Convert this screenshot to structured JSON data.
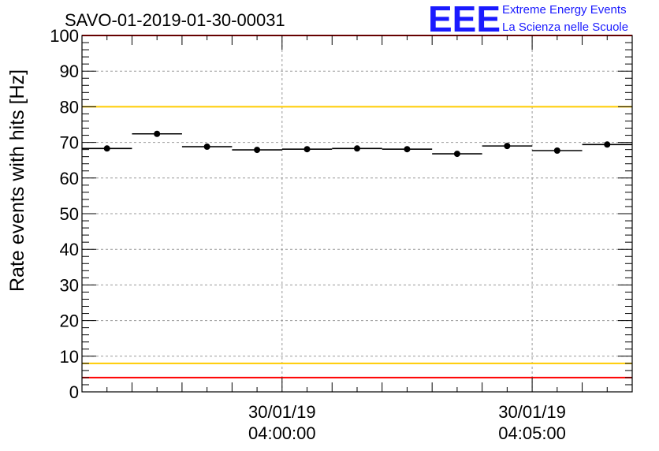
{
  "chart_data": {
    "type": "scatter",
    "title": "SAVO-01-2019-01-30-00031",
    "ylabel": "Rate events with hits [Hz]",
    "xlabel": "",
    "ylim": [
      0,
      100
    ],
    "yticks": [
      0,
      10,
      20,
      30,
      40,
      50,
      60,
      70,
      80,
      90,
      100
    ],
    "x_range_minutes": [
      -4.0,
      7.0
    ],
    "x_tick_labels": [
      {
        "minute": 0,
        "date": "30/01/19",
        "time": "04:00:00"
      },
      {
        "minute": 5,
        "date": "30/01/19",
        "time": "04:05:00"
      }
    ],
    "grid": true,
    "series": [
      {
        "name": "rate",
        "bin_width_minutes": 1.0,
        "points": [
          {
            "x": -3.5,
            "y": 68.3
          },
          {
            "x": -2.5,
            "y": 72.4
          },
          {
            "x": -1.5,
            "y": 68.8
          },
          {
            "x": -0.5,
            "y": 67.9
          },
          {
            "x": 0.5,
            "y": 68.1
          },
          {
            "x": 1.5,
            "y": 68.3
          },
          {
            "x": 2.5,
            "y": 68.1
          },
          {
            "x": 3.5,
            "y": 66.8
          },
          {
            "x": 4.5,
            "y": 69.0
          },
          {
            "x": 5.5,
            "y": 67.7
          },
          {
            "x": 6.5,
            "y": 69.4
          }
        ]
      }
    ],
    "reference_lines": [
      {
        "name": "upper-red",
        "y": 100,
        "color": "#ff0000"
      },
      {
        "name": "upper-yellow",
        "y": 80,
        "color": "#ffcc00"
      },
      {
        "name": "lower-yellow",
        "y": 8,
        "color": "#ffcc00"
      },
      {
        "name": "lower-red",
        "y": 4,
        "color": "#ff0000"
      }
    ]
  },
  "logo": {
    "mark": "EEE",
    "line1": "Extreme Energy Events",
    "line2": "La Scienza nelle Scuole",
    "color": "#1a1aff"
  }
}
